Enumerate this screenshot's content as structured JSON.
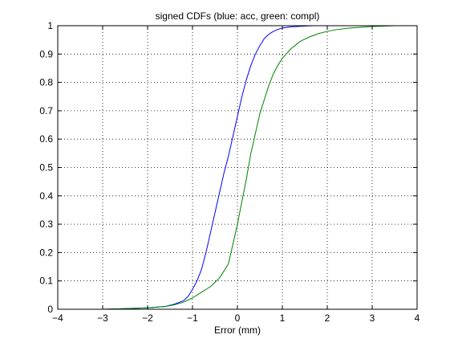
{
  "chart_data": {
    "type": "line",
    "title": "signed CDFs (blue: acc, green: compl)",
    "xlabel": "Error (mm)",
    "ylabel": "",
    "xlim": [
      -4,
      4
    ],
    "ylim": [
      0,
      1
    ],
    "grid": true,
    "grid_style": "dotted",
    "xticks": [
      "−4",
      "−3",
      "−2",
      "−1",
      "0",
      "1",
      "2",
      "3",
      "4"
    ],
    "yticks": [
      "0",
      "0.1",
      "0.2",
      "0.3",
      "0.4",
      "0.5",
      "0.6",
      "0.7",
      "0.8",
      "0.9",
      "1"
    ],
    "series": [
      {
        "color": "#0000ff",
        "x": [
          -3.7,
          -3.0,
          -2.5,
          -2.0,
          -1.6,
          -1.4,
          -1.2,
          -1.1,
          -1.0,
          -0.9,
          -0.8,
          -0.7,
          -0.6,
          -0.5,
          -0.4,
          -0.3,
          -0.2,
          -0.1,
          0.0,
          0.1,
          0.2,
          0.3,
          0.4,
          0.5,
          0.6,
          0.7,
          0.8,
          0.9,
          1.0,
          1.2,
          1.4,
          1.7,
          2.0,
          2.5,
          3.0
        ],
        "y": [
          0.0,
          0.0,
          0.002,
          0.005,
          0.01,
          0.018,
          0.03,
          0.045,
          0.07,
          0.1,
          0.14,
          0.2,
          0.27,
          0.34,
          0.41,
          0.48,
          0.54,
          0.61,
          0.68,
          0.75,
          0.81,
          0.86,
          0.9,
          0.93,
          0.955,
          0.97,
          0.98,
          0.987,
          0.992,
          0.996,
          0.998,
          1.0,
          1.0,
          1.0,
          1.0
        ]
      },
      {
        "color": "#008000",
        "x": [
          -3.7,
          -3.0,
          -2.5,
          -2.0,
          -1.6,
          -1.4,
          -1.2,
          -1.0,
          -0.8,
          -0.6,
          -0.4,
          -0.2,
          0.0,
          0.1,
          0.2,
          0.3,
          0.4,
          0.5,
          0.6,
          0.7,
          0.8,
          0.9,
          1.0,
          1.2,
          1.4,
          1.6,
          1.8,
          2.0,
          2.2,
          2.5,
          3.0,
          3.5,
          4.0
        ],
        "y": [
          0.0,
          0.0,
          0.002,
          0.005,
          0.01,
          0.016,
          0.025,
          0.04,
          0.06,
          0.08,
          0.11,
          0.16,
          0.3,
          0.38,
          0.46,
          0.55,
          0.62,
          0.69,
          0.74,
          0.79,
          0.83,
          0.86,
          0.885,
          0.92,
          0.945,
          0.96,
          0.972,
          0.98,
          0.986,
          0.992,
          0.997,
          1.0,
          1.0
        ]
      }
    ]
  }
}
